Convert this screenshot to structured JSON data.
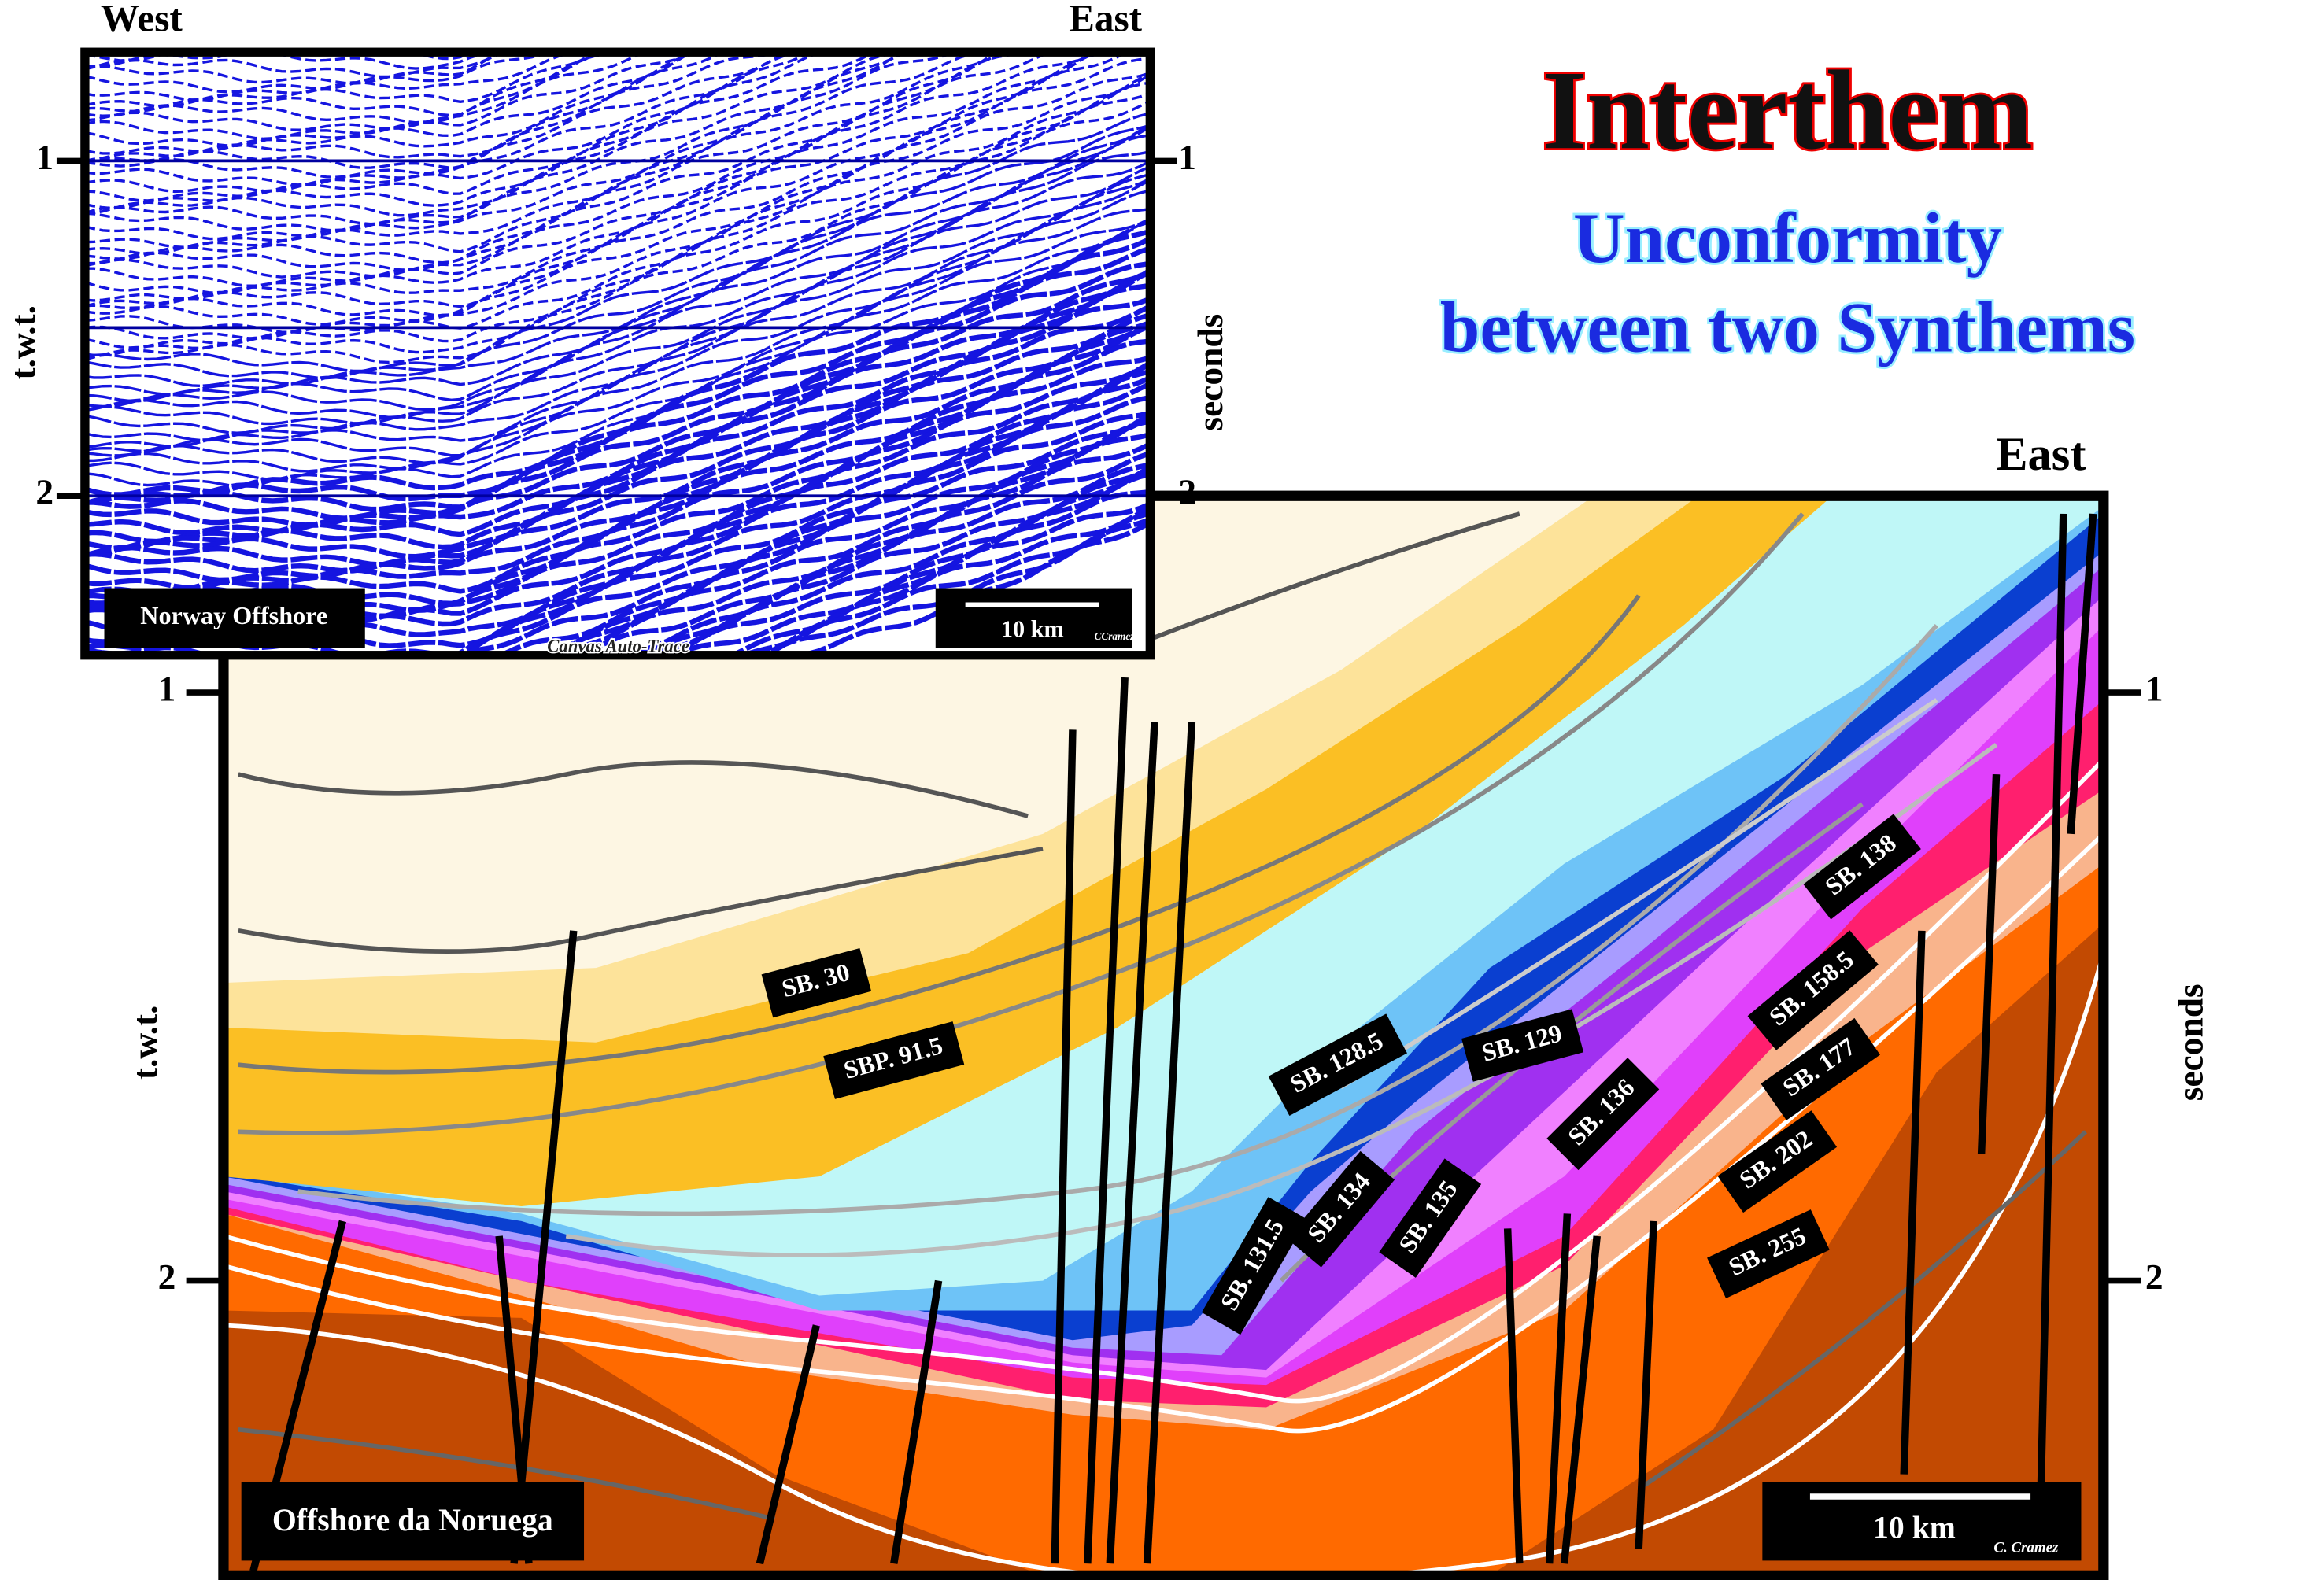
{
  "header": {
    "title": "Interthem",
    "subtitle_line1": "Unconformity",
    "subtitle_line2": "between two Synthems"
  },
  "seismic": {
    "west": "West",
    "east": "East",
    "left_axis_label": "t.w.t.",
    "right_axis_label": "seconds",
    "left_ticks": [
      "1",
      "2"
    ],
    "right_ticks": [
      "1",
      "2"
    ],
    "caption": "Norway Offshore",
    "scale": "10 km",
    "credit": "CCramez",
    "software": "Canvas Auto-Trace"
  },
  "interpretation": {
    "east": "East",
    "left_axis_label": "t.w.t.",
    "right_axis_label": "seconds",
    "left_ticks": [
      "1",
      "2"
    ],
    "right_ticks": [
      "1",
      "2"
    ],
    "caption": "Offshore da Noruega",
    "scale": "10 km",
    "credit": "C. Cramez",
    "labels": [
      "SB. 30",
      "SBP. 91.5",
      "SB. 128.5",
      "SB. 129",
      "SB. 131.5",
      "SB. 134",
      "SB. 135",
      "SB. 136",
      "SB. 138",
      "SB. 158.5",
      "SB. 177",
      "SB. 202",
      "SB. 255"
    ]
  }
}
